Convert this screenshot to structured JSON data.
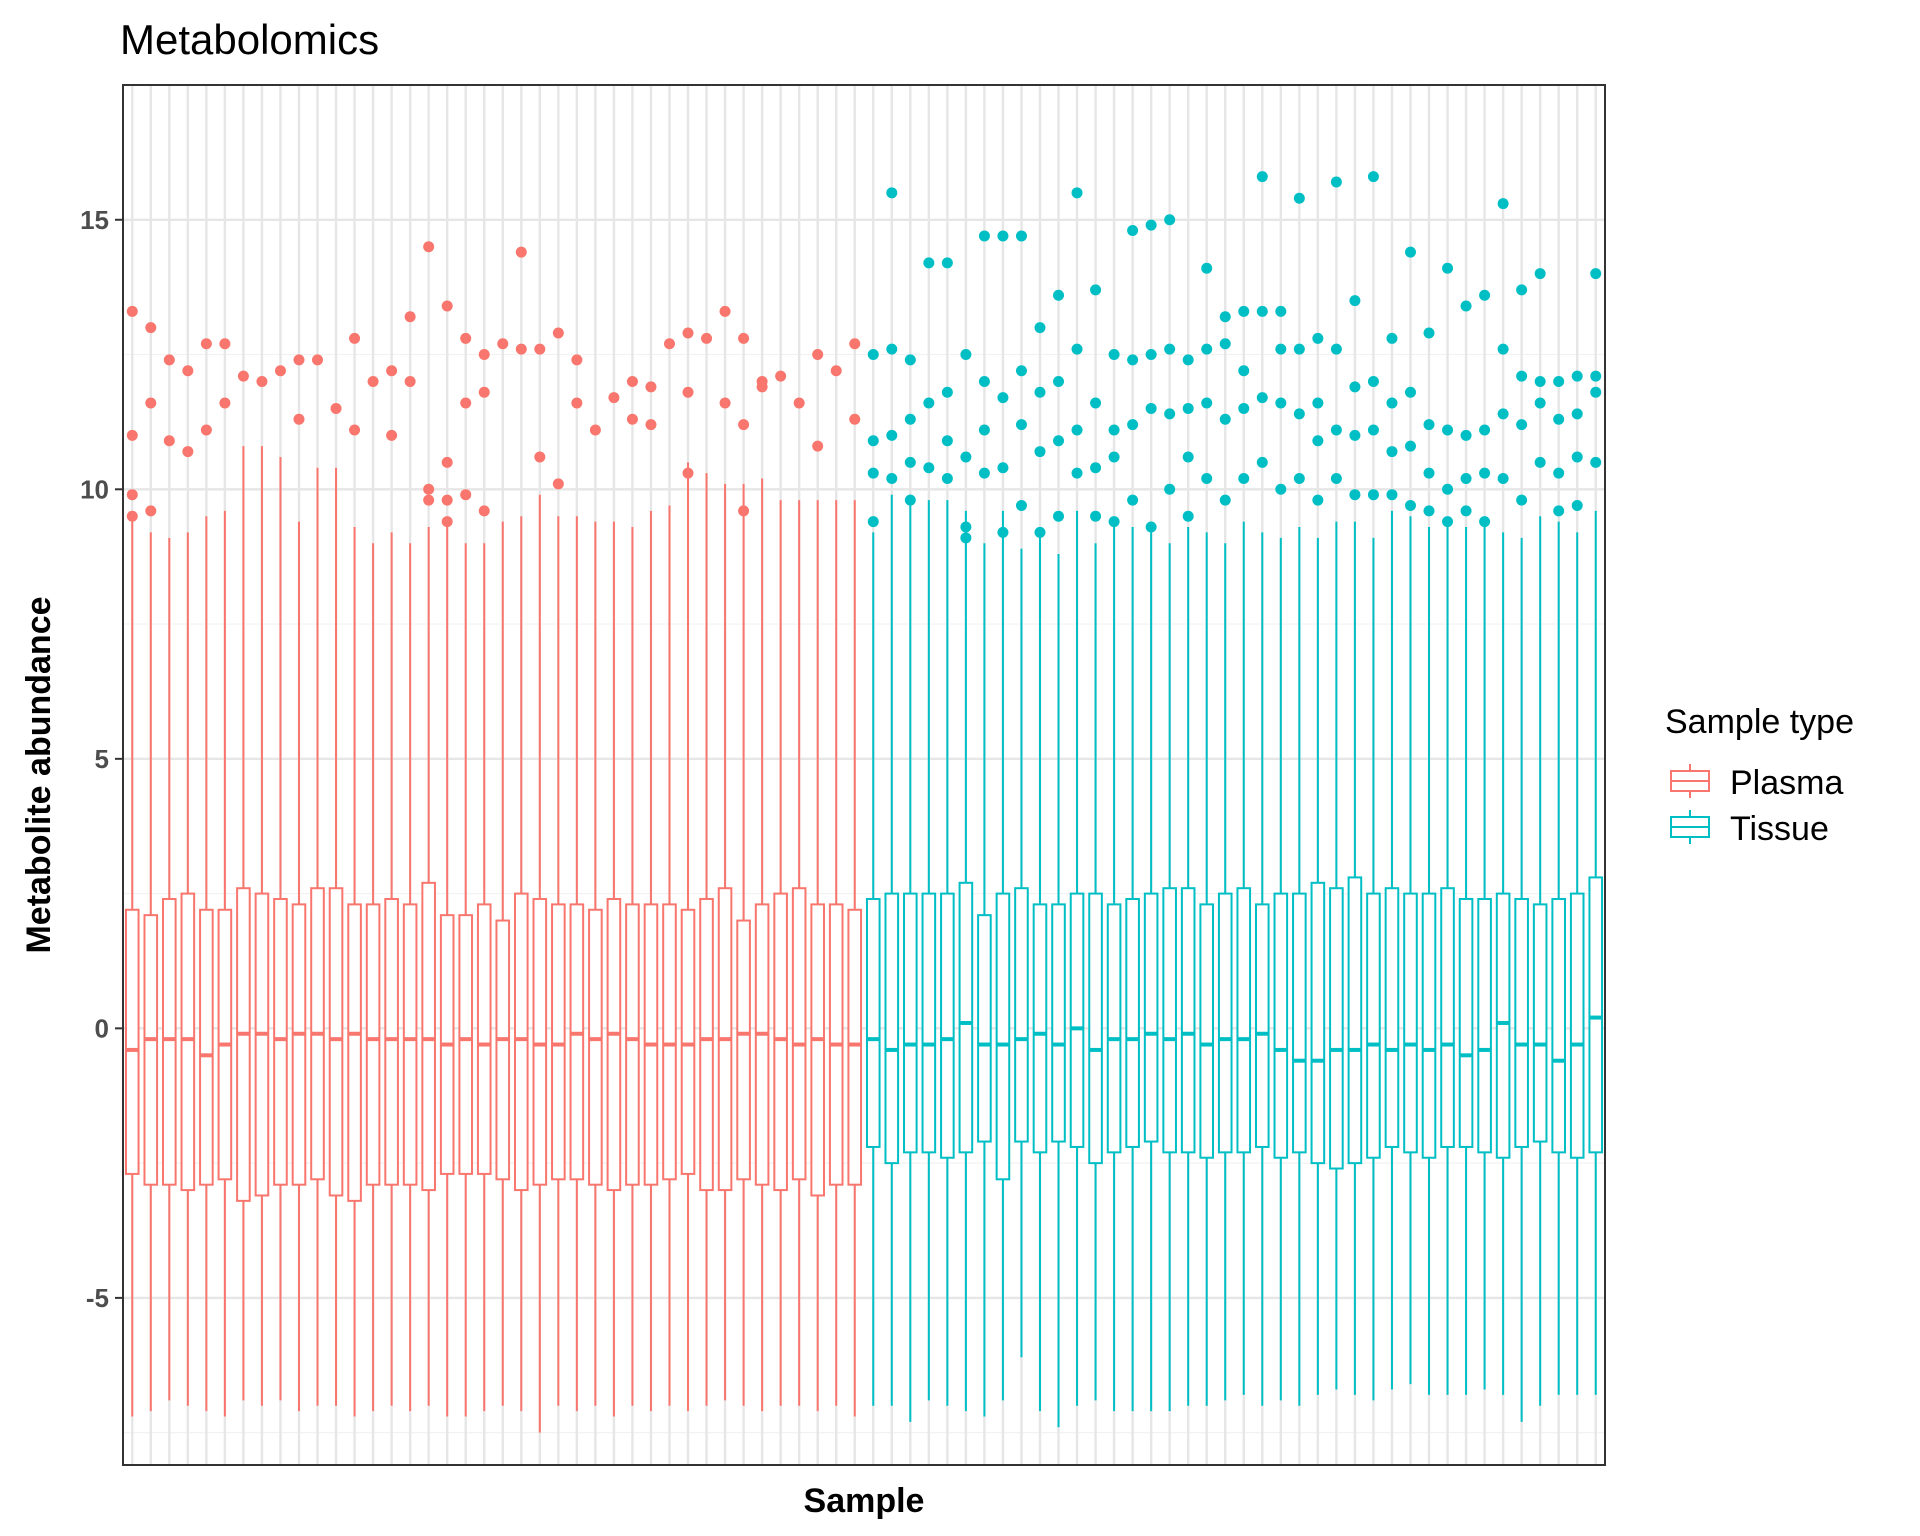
{
  "chart_data": {
    "type": "box",
    "title": "Metabolomics",
    "xlabel": "Sample",
    "ylabel": "Metabolite abundance",
    "ylim": [
      -8.1,
      17.5
    ],
    "yticks": [
      -5,
      0,
      5,
      10,
      15
    ],
    "ytick_labels": [
      "-5",
      "0",
      "5",
      "10",
      "15"
    ],
    "x_tick_labels_shown": false,
    "grid": true,
    "legend": {
      "title": "Sample type",
      "position": "right",
      "entries": [
        {
          "name": "Plasma",
          "color": "#F8766D"
        },
        {
          "name": "Tissue",
          "color": "#00BFC4"
        }
      ]
    },
    "n_samples": 80,
    "series": [
      {
        "name": "Plasma",
        "color": "#F8766D",
        "samples": 40,
        "lower_whisker": [
          -7.2,
          -7.1,
          -6.9,
          -7.0,
          -7.1,
          -7.2,
          -6.9,
          -7.0,
          -6.9,
          -7.1,
          -7.0,
          -7.0,
          -7.2,
          -7.1,
          -7.0,
          -7.1,
          -7.0,
          -7.2,
          -7.2,
          -7.1,
          -7.0,
          -7.1,
          -7.5,
          -7.0,
          -7.1,
          -7.0,
          -7.2,
          -7.0,
          -7.1,
          -7.0,
          -7.1,
          -7.0,
          -6.9,
          -7.0,
          -7.1,
          -7.0,
          -7.0,
          -7.1,
          -7.0,
          -7.2
        ],
        "q1": [
          -2.7,
          -2.9,
          -2.9,
          -3.0,
          -2.9,
          -2.8,
          -3.2,
          -3.1,
          -2.9,
          -2.9,
          -2.8,
          -3.1,
          -3.2,
          -2.9,
          -2.9,
          -2.9,
          -3.0,
          -2.7,
          -2.7,
          -2.7,
          -2.8,
          -3.0,
          -2.9,
          -2.8,
          -2.8,
          -2.9,
          -3.0,
          -2.9,
          -2.9,
          -2.8,
          -2.7,
          -3.0,
          -3.0,
          -2.8,
          -2.9,
          -3.0,
          -2.8,
          -3.1,
          -2.9,
          -2.9
        ],
        "median": [
          -0.4,
          -0.2,
          -0.2,
          -0.2,
          -0.5,
          -0.3,
          -0.1,
          -0.1,
          -0.2,
          -0.1,
          -0.1,
          -0.2,
          -0.1,
          -0.2,
          -0.2,
          -0.2,
          -0.2,
          -0.3,
          -0.2,
          -0.3,
          -0.2,
          -0.2,
          -0.3,
          -0.3,
          -0.1,
          -0.2,
          -0.1,
          -0.2,
          -0.3,
          -0.3,
          -0.3,
          -0.2,
          -0.2,
          -0.1,
          -0.1,
          -0.2,
          -0.3,
          -0.2,
          -0.3,
          -0.3
        ],
        "q3": [
          2.2,
          2.1,
          2.4,
          2.5,
          2.2,
          2.2,
          2.6,
          2.5,
          2.4,
          2.3,
          2.6,
          2.6,
          2.3,
          2.3,
          2.4,
          2.3,
          2.7,
          2.1,
          2.1,
          2.3,
          2.0,
          2.5,
          2.4,
          2.3,
          2.3,
          2.2,
          2.4,
          2.3,
          2.3,
          2.3,
          2.2,
          2.4,
          2.6,
          2.0,
          2.3,
          2.5,
          2.6,
          2.3,
          2.3,
          2.2
        ],
        "upper_whisker": [
          9.4,
          9.2,
          9.1,
          9.2,
          9.5,
          9.6,
          10.8,
          10.8,
          10.6,
          9.4,
          10.4,
          10.4,
          9.3,
          9.0,
          9.2,
          9.0,
          9.3,
          9.3,
          9.0,
          9.0,
          9.4,
          9.5,
          9.9,
          9.5,
          9.5,
          9.4,
          9.4,
          9.3,
          9.6,
          9.7,
          10.5,
          10.3,
          10.1,
          10.1,
          10.2,
          9.8,
          9.8,
          9.8,
          9.8,
          9.8
        ],
        "outliers": [
          [
            13.3,
            11.0,
            9.9,
            9.5
          ],
          [
            13.0,
            11.6,
            9.6
          ],
          [
            12.4,
            10.9
          ],
          [
            12.2,
            10.7
          ],
          [
            12.7,
            11.1
          ],
          [
            12.7,
            11.6
          ],
          [
            12.1
          ],
          [
            12.0
          ],
          [
            12.2
          ],
          [
            12.4,
            11.3
          ],
          [
            12.4
          ],
          [
            11.5
          ],
          [
            12.8,
            11.1
          ],
          [
            12.0
          ],
          [
            12.2,
            11.0
          ],
          [
            13.2,
            12.0
          ],
          [
            14.5,
            10.0,
            9.8
          ],
          [
            13.4,
            10.5,
            9.8,
            9.4
          ],
          [
            12.8,
            11.6,
            9.9
          ],
          [
            12.5,
            11.8,
            9.6
          ],
          [
            12.7
          ],
          [
            12.6,
            14.4
          ],
          [
            12.6,
            10.6
          ],
          [
            12.9,
            10.1
          ],
          [
            12.4,
            11.6
          ],
          [
            11.1
          ],
          [
            11.7
          ],
          [
            12.0,
            11.3
          ],
          [
            11.9,
            11.2
          ],
          [
            12.7
          ],
          [
            12.9,
            11.8,
            10.3
          ],
          [
            12.8
          ],
          [
            13.3,
            11.6
          ],
          [
            12.8,
            11.2,
            9.6
          ],
          [
            11.9,
            12.0
          ],
          [
            12.1
          ],
          [
            11.6
          ],
          [
            12.5,
            10.8
          ],
          [
            12.2
          ],
          [
            12.7,
            11.3
          ]
        ]
      },
      {
        "name": "Tissue",
        "color": "#00BFC4",
        "samples": 40,
        "lower_whisker": [
          -7.0,
          -7.0,
          -7.3,
          -6.9,
          -7.0,
          -7.1,
          -7.2,
          -6.9,
          -6.1,
          -7.1,
          -7.4,
          -7.0,
          -6.9,
          -7.1,
          -7.1,
          -7.1,
          -7.1,
          -7.0,
          -7.0,
          -6.9,
          -6.8,
          -7.0,
          -6.9,
          -7.0,
          -6.8,
          -6.7,
          -6.8,
          -6.9,
          -6.7,
          -6.6,
          -6.8,
          -6.8,
          -6.8,
          -6.7,
          -6.8,
          -7.3,
          -7.0,
          -6.8,
          -6.8,
          -6.8
        ],
        "q1": [
          -2.2,
          -2.5,
          -2.3,
          -2.3,
          -2.4,
          -2.3,
          -2.1,
          -2.8,
          -2.1,
          -2.3,
          -2.1,
          -2.2,
          -2.5,
          -2.3,
          -2.2,
          -2.1,
          -2.3,
          -2.3,
          -2.4,
          -2.3,
          -2.3,
          -2.2,
          -2.4,
          -2.3,
          -2.5,
          -2.6,
          -2.5,
          -2.4,
          -2.2,
          -2.3,
          -2.4,
          -2.2,
          -2.2,
          -2.3,
          -2.4,
          -2.2,
          -2.1,
          -2.3,
          -2.4,
          -2.3
        ],
        "median": [
          -0.2,
          -0.4,
          -0.3,
          -0.3,
          -0.2,
          0.1,
          -0.3,
          -0.3,
          -0.2,
          -0.1,
          -0.3,
          0.0,
          -0.4,
          -0.2,
          -0.2,
          -0.1,
          -0.2,
          -0.1,
          -0.3,
          -0.2,
          -0.2,
          -0.1,
          -0.4,
          -0.6,
          -0.6,
          -0.4,
          -0.4,
          -0.3,
          -0.4,
          -0.3,
          -0.4,
          -0.3,
          -0.5,
          -0.4,
          0.1,
          -0.3,
          -0.3,
          -0.6,
          -0.3,
          0.2
        ],
        "q3": [
          2.4,
          2.5,
          2.5,
          2.5,
          2.5,
          2.7,
          2.1,
          2.5,
          2.6,
          2.3,
          2.3,
          2.5,
          2.5,
          2.3,
          2.4,
          2.5,
          2.6,
          2.6,
          2.3,
          2.5,
          2.6,
          2.3,
          2.5,
          2.5,
          2.7,
          2.6,
          2.8,
          2.5,
          2.6,
          2.5,
          2.5,
          2.6,
          2.4,
          2.4,
          2.5,
          2.4,
          2.3,
          2.4,
          2.5,
          2.8
        ],
        "upper_whisker": [
          9.2,
          9.9,
          9.9,
          9.8,
          9.8,
          9.6,
          9.0,
          9.6,
          8.9,
          9.2,
          8.8,
          9.6,
          9.0,
          9.3,
          9.3,
          9.2,
          9.0,
          9.3,
          9.2,
          9.0,
          9.4,
          9.2,
          9.1,
          9.3,
          9.1,
          9.4,
          9.4,
          9.1,
          9.6,
          9.5,
          9.3,
          9.4,
          9.3,
          9.4,
          9.2,
          9.1,
          9.5,
          9.4,
          9.2,
          9.6
        ],
        "outliers": [
          [
            12.5,
            10.9,
            10.3,
            9.4
          ],
          [
            15.5,
            12.6,
            11.0,
            10.2
          ],
          [
            12.4,
            11.3,
            10.5,
            9.8
          ],
          [
            14.2,
            11.6,
            10.4
          ],
          [
            14.2,
            11.8,
            10.9,
            10.2
          ],
          [
            12.5,
            10.6,
            9.3,
            9.1
          ],
          [
            14.7,
            12.0,
            11.1,
            10.3
          ],
          [
            14.7,
            11.7,
            10.4,
            9.2
          ],
          [
            14.7,
            12.2,
            11.2,
            9.7
          ],
          [
            13.0,
            11.8,
            10.7,
            9.2
          ],
          [
            13.6,
            12.0,
            10.9,
            9.5
          ],
          [
            15.5,
            12.6,
            11.1,
            10.3
          ],
          [
            13.7,
            11.6,
            10.4,
            9.5
          ],
          [
            12.5,
            11.1,
            10.6,
            9.4
          ],
          [
            14.8,
            12.4,
            11.2,
            9.8
          ],
          [
            14.9,
            12.5,
            11.5,
            9.3
          ],
          [
            15.0,
            12.6,
            11.4,
            10.0
          ],
          [
            12.4,
            11.5,
            10.6,
            9.5
          ],
          [
            14.1,
            12.6,
            11.6,
            10.2
          ],
          [
            13.2,
            12.7,
            11.3,
            9.8
          ],
          [
            13.3,
            12.2,
            11.5,
            10.2
          ],
          [
            15.8,
            13.3,
            11.7,
            10.5
          ],
          [
            13.3,
            12.6,
            11.6,
            10.0
          ],
          [
            15.4,
            12.6,
            11.4,
            10.2
          ],
          [
            12.8,
            11.6,
            10.9,
            9.8
          ],
          [
            15.7,
            12.6,
            11.1,
            10.2
          ],
          [
            13.5,
            11.9,
            11.0,
            9.9
          ],
          [
            15.8,
            12.0,
            11.1,
            9.9
          ],
          [
            12.8,
            11.6,
            10.7,
            9.9
          ],
          [
            14.4,
            11.8,
            10.8,
            9.7
          ],
          [
            12.9,
            11.2,
            10.3,
            9.6
          ],
          [
            14.1,
            11.1,
            10.0,
            9.4
          ],
          [
            13.4,
            11.0,
            10.2,
            9.6
          ],
          [
            13.6,
            11.1,
            10.3,
            9.4
          ],
          [
            15.3,
            12.6,
            11.4,
            10.2
          ],
          [
            13.7,
            12.1,
            11.2,
            9.8
          ],
          [
            14.0,
            12.0,
            11.6,
            10.5
          ],
          [
            12.0,
            11.3,
            10.3,
            9.6
          ],
          [
            12.1,
            11.4,
            10.6,
            9.7
          ],
          [
            14.0,
            12.1,
            11.8,
            10.5
          ]
        ]
      }
    ]
  }
}
